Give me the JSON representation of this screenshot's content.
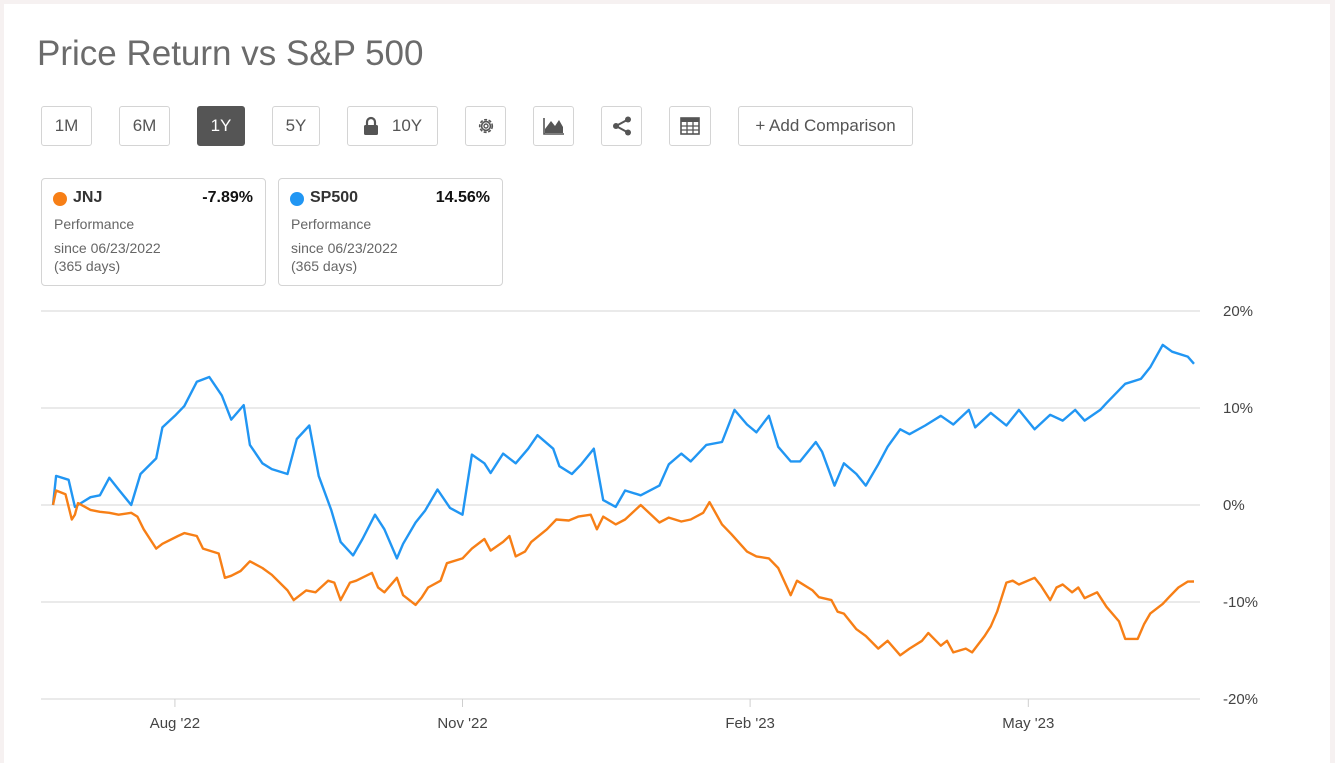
{
  "title": "Price Return vs S&P 500",
  "toolbar": {
    "ranges": [
      "1M",
      "6M",
      "1Y",
      "5Y",
      "10Y"
    ],
    "active_range": "1Y",
    "locked_range_icon": "lock-icon",
    "icons": [
      "gear-icon",
      "area-chart-icon",
      "share-icon",
      "table-icon"
    ],
    "add_comparison_label": "+ Add Comparison"
  },
  "legend": [
    {
      "symbol": "JNJ",
      "value": "-7.89%",
      "label": "Performance",
      "since": "since 06/23/2022",
      "days": "(365 days)",
      "color": "#f77f16"
    },
    {
      "symbol": "SP500",
      "value": "14.56%",
      "label": "Performance",
      "since": "since 06/23/2022",
      "days": "(365 days)",
      "color": "#2196f3"
    }
  ],
  "chart_data": {
    "type": "line",
    "x_start": "2022-06-23",
    "x_end": "2023-06-23",
    "xticks": [
      {
        "date": "2022-08-01",
        "label": "Aug '22"
      },
      {
        "date": "2022-11-01",
        "label": "Nov '22"
      },
      {
        "date": "2023-02-01",
        "label": "Feb '23"
      },
      {
        "date": "2023-05-01",
        "label": "May '23"
      }
    ],
    "ylim": [
      -20,
      20
    ],
    "yticks": [
      20,
      10,
      0,
      -10,
      -20
    ],
    "ytick_labels": [
      "20%",
      "10%",
      "0%",
      "-10%",
      "-20%"
    ],
    "grid": true,
    "series": [
      {
        "name": "SP500",
        "color": "#2196f3",
        "points": [
          [
            "2022-06-23",
            0
          ],
          [
            "2022-06-24",
            3
          ],
          [
            "2022-06-28",
            2.6
          ],
          [
            "2022-06-30",
            -0.2
          ],
          [
            "2022-07-05",
            0.8
          ],
          [
            "2022-07-08",
            1
          ],
          [
            "2022-07-11",
            2.8
          ],
          [
            "2022-07-14",
            1.6
          ],
          [
            "2022-07-18",
            0
          ],
          [
            "2022-07-21",
            3.2
          ],
          [
            "2022-07-26",
            4.8
          ],
          [
            "2022-07-28",
            8
          ],
          [
            "2022-08-01",
            9.2
          ],
          [
            "2022-08-04",
            10.2
          ],
          [
            "2022-08-08",
            12.7
          ],
          [
            "2022-08-12",
            13.2
          ],
          [
            "2022-08-16",
            11.3
          ],
          [
            "2022-08-19",
            8.8
          ],
          [
            "2022-08-23",
            10.3
          ],
          [
            "2022-08-25",
            6.2
          ],
          [
            "2022-08-29",
            4.3
          ],
          [
            "2022-09-01",
            3.7
          ],
          [
            "2022-09-06",
            3.2
          ],
          [
            "2022-09-09",
            6.8
          ],
          [
            "2022-09-13",
            8.2
          ],
          [
            "2022-09-16",
            3
          ],
          [
            "2022-09-20",
            -0.5
          ],
          [
            "2022-09-23",
            -3.8
          ],
          [
            "2022-09-27",
            -5.2
          ],
          [
            "2022-09-30",
            -3.5
          ],
          [
            "2022-10-04",
            -1
          ],
          [
            "2022-10-07",
            -2.5
          ],
          [
            "2022-10-11",
            -5.5
          ],
          [
            "2022-10-13",
            -4
          ],
          [
            "2022-10-17",
            -1.8
          ],
          [
            "2022-10-20",
            -0.6
          ],
          [
            "2022-10-24",
            1.6
          ],
          [
            "2022-10-28",
            -0.3
          ],
          [
            "2022-11-01",
            -1
          ],
          [
            "2022-11-04",
            5.2
          ],
          [
            "2022-11-08",
            4.3
          ],
          [
            "2022-11-10",
            3.3
          ],
          [
            "2022-11-14",
            5.3
          ],
          [
            "2022-11-18",
            4.3
          ],
          [
            "2022-11-22",
            5.8
          ],
          [
            "2022-11-25",
            7.2
          ],
          [
            "2022-11-30",
            5.8
          ],
          [
            "2022-12-02",
            4
          ],
          [
            "2022-12-06",
            3.2
          ],
          [
            "2022-12-09",
            4.2
          ],
          [
            "2022-12-13",
            5.8
          ],
          [
            "2022-12-16",
            0.5
          ],
          [
            "2022-12-20",
            -0.2
          ],
          [
            "2022-12-23",
            1.5
          ],
          [
            "2022-12-28",
            1
          ],
          [
            "2023-01-03",
            2
          ],
          [
            "2023-01-06",
            4.2
          ],
          [
            "2023-01-10",
            5.3
          ],
          [
            "2023-01-13",
            4.5
          ],
          [
            "2023-01-18",
            6.2
          ],
          [
            "2023-01-23",
            6.5
          ],
          [
            "2023-01-27",
            9.8
          ],
          [
            "2023-01-31",
            8.3
          ],
          [
            "2023-02-03",
            7.5
          ],
          [
            "2023-02-07",
            9.2
          ],
          [
            "2023-02-10",
            6
          ],
          [
            "2023-02-14",
            4.5
          ],
          [
            "2023-02-17",
            4.5
          ],
          [
            "2023-02-22",
            6.5
          ],
          [
            "2023-02-24",
            5.5
          ],
          [
            "2023-02-28",
            2
          ],
          [
            "2023-03-03",
            4.3
          ],
          [
            "2023-03-07",
            3.2
          ],
          [
            "2023-03-10",
            2
          ],
          [
            "2023-03-14",
            4.2
          ],
          [
            "2023-03-17",
            6
          ],
          [
            "2023-03-21",
            7.8
          ],
          [
            "2023-03-24",
            7.3
          ],
          [
            "2023-03-29",
            8.2
          ],
          [
            "2023-04-03",
            9.2
          ],
          [
            "2023-04-07",
            8.3
          ],
          [
            "2023-04-12",
            9.8
          ],
          [
            "2023-04-14",
            8
          ],
          [
            "2023-04-19",
            9.5
          ],
          [
            "2023-04-24",
            8.2
          ],
          [
            "2023-04-28",
            9.8
          ],
          [
            "2023-05-03",
            7.8
          ],
          [
            "2023-05-08",
            9.3
          ],
          [
            "2023-05-12",
            8.7
          ],
          [
            "2023-05-16",
            9.8
          ],
          [
            "2023-05-19",
            8.7
          ],
          [
            "2023-05-24",
            9.8
          ],
          [
            "2023-05-26",
            10.5
          ],
          [
            "2023-06-01",
            12.5
          ],
          [
            "2023-06-06",
            13
          ],
          [
            "2023-06-09",
            14.2
          ],
          [
            "2023-06-13",
            16.5
          ],
          [
            "2023-06-16",
            15.8
          ],
          [
            "2023-06-21",
            15.3
          ],
          [
            "2023-06-23",
            14.56
          ]
        ]
      },
      {
        "name": "JNJ",
        "color": "#f77f16",
        "points": [
          [
            "2022-06-23",
            0
          ],
          [
            "2022-06-24",
            1.5
          ],
          [
            "2022-06-27",
            1.1
          ],
          [
            "2022-06-29",
            -1.5
          ],
          [
            "2022-06-30",
            -1
          ],
          [
            "2022-07-01",
            0.2
          ],
          [
            "2022-07-05",
            -0.5
          ],
          [
            "2022-07-08",
            -0.7
          ],
          [
            "2022-07-11",
            -0.8
          ],
          [
            "2022-07-14",
            -1
          ],
          [
            "2022-07-18",
            -0.8
          ],
          [
            "2022-07-20",
            -1.2
          ],
          [
            "2022-07-22",
            -2.5
          ],
          [
            "2022-07-26",
            -4.5
          ],
          [
            "2022-07-28",
            -4
          ],
          [
            "2022-08-02",
            -3.2
          ],
          [
            "2022-08-04",
            -2.9
          ],
          [
            "2022-08-08",
            -3.2
          ],
          [
            "2022-08-10",
            -4.5
          ],
          [
            "2022-08-15",
            -5
          ],
          [
            "2022-08-17",
            -7.5
          ],
          [
            "2022-08-19",
            -7.3
          ],
          [
            "2022-08-22",
            -6.8
          ],
          [
            "2022-08-25",
            -5.8
          ],
          [
            "2022-08-29",
            -6.5
          ],
          [
            "2022-09-01",
            -7.2
          ],
          [
            "2022-09-06",
            -8.8
          ],
          [
            "2022-09-08",
            -9.8
          ],
          [
            "2022-09-12",
            -8.8
          ],
          [
            "2022-09-15",
            -9
          ],
          [
            "2022-09-19",
            -7.8
          ],
          [
            "2022-09-21",
            -8
          ],
          [
            "2022-09-23",
            -9.8
          ],
          [
            "2022-09-26",
            -8
          ],
          [
            "2022-09-28",
            -7.8
          ],
          [
            "2022-10-03",
            -7
          ],
          [
            "2022-10-05",
            -8.5
          ],
          [
            "2022-10-07",
            -9
          ],
          [
            "2022-10-11",
            -7.5
          ],
          [
            "2022-10-13",
            -9.3
          ],
          [
            "2022-10-17",
            -10.3
          ],
          [
            "2022-10-19",
            -9.5
          ],
          [
            "2022-10-21",
            -8.5
          ],
          [
            "2022-10-25",
            -7.8
          ],
          [
            "2022-10-27",
            -6
          ],
          [
            "2022-11-01",
            -5.5
          ],
          [
            "2022-11-04",
            -4.5
          ],
          [
            "2022-11-08",
            -3.5
          ],
          [
            "2022-11-10",
            -4.7
          ],
          [
            "2022-11-14",
            -3.8
          ],
          [
            "2022-11-16",
            -3.2
          ],
          [
            "2022-11-18",
            -5.3
          ],
          [
            "2022-11-21",
            -4.8
          ],
          [
            "2022-11-23",
            -3.8
          ],
          [
            "2022-11-28",
            -2.5
          ],
          [
            "2022-12-01",
            -1.5
          ],
          [
            "2022-12-05",
            -1.6
          ],
          [
            "2022-12-08",
            -1.2
          ],
          [
            "2022-12-12",
            -1
          ],
          [
            "2022-12-14",
            -2.5
          ],
          [
            "2022-12-16",
            -1.2
          ],
          [
            "2022-12-20",
            -2
          ],
          [
            "2022-12-23",
            -1.5
          ],
          [
            "2022-12-28",
            0
          ],
          [
            "2023-01-03",
            -1.8
          ],
          [
            "2023-01-06",
            -1.3
          ],
          [
            "2023-01-10",
            -1.7
          ],
          [
            "2023-01-13",
            -1.5
          ],
          [
            "2023-01-17",
            -0.8
          ],
          [
            "2023-01-19",
            0.3
          ],
          [
            "2023-01-23",
            -2
          ],
          [
            "2023-01-26",
            -3
          ],
          [
            "2023-01-31",
            -4.8
          ],
          [
            "2023-02-03",
            -5.3
          ],
          [
            "2023-02-07",
            -5.5
          ],
          [
            "2023-02-10",
            -6.5
          ],
          [
            "2023-02-14",
            -9.3
          ],
          [
            "2023-02-16",
            -7.8
          ],
          [
            "2023-02-21",
            -8.8
          ],
          [
            "2023-02-23",
            -9.5
          ],
          [
            "2023-02-27",
            -9.8
          ],
          [
            "2023-03-01",
            -11
          ],
          [
            "2023-03-03",
            -11.2
          ],
          [
            "2023-03-07",
            -12.8
          ],
          [
            "2023-03-10",
            -13.5
          ],
          [
            "2023-03-14",
            -14.8
          ],
          [
            "2023-03-17",
            -14
          ],
          [
            "2023-03-21",
            -15.5
          ],
          [
            "2023-03-24",
            -14.8
          ],
          [
            "2023-03-28",
            -14
          ],
          [
            "2023-03-30",
            -13.2
          ],
          [
            "2023-04-03",
            -14.5
          ],
          [
            "2023-04-05",
            -14
          ],
          [
            "2023-04-07",
            -15.2
          ],
          [
            "2023-04-11",
            -14.8
          ],
          [
            "2023-04-13",
            -15.2
          ],
          [
            "2023-04-17",
            -13.5
          ],
          [
            "2023-04-19",
            -12.5
          ],
          [
            "2023-04-21",
            -11
          ],
          [
            "2023-04-24",
            -8
          ],
          [
            "2023-04-26",
            -7.8
          ],
          [
            "2023-04-28",
            -8.2
          ],
          [
            "2023-05-03",
            -7.5
          ],
          [
            "2023-05-05",
            -8.3
          ],
          [
            "2023-05-08",
            -9.8
          ],
          [
            "2023-05-10",
            -8.5
          ],
          [
            "2023-05-12",
            -8.2
          ],
          [
            "2023-05-15",
            -9
          ],
          [
            "2023-05-17",
            -8.5
          ],
          [
            "2023-05-19",
            -9.6
          ],
          [
            "2023-05-23",
            -9
          ],
          [
            "2023-05-26",
            -10.5
          ],
          [
            "2023-05-30",
            -12
          ],
          [
            "2023-06-01",
            -13.8
          ],
          [
            "2023-06-05",
            -13.8
          ],
          [
            "2023-06-07",
            -12.3
          ],
          [
            "2023-06-09",
            -11.2
          ],
          [
            "2023-06-13",
            -10.2
          ],
          [
            "2023-06-15",
            -9.5
          ],
          [
            "2023-06-18",
            -8.5
          ],
          [
            "2023-06-21",
            -7.9
          ],
          [
            "2023-06-23",
            -7.89
          ]
        ]
      }
    ]
  }
}
